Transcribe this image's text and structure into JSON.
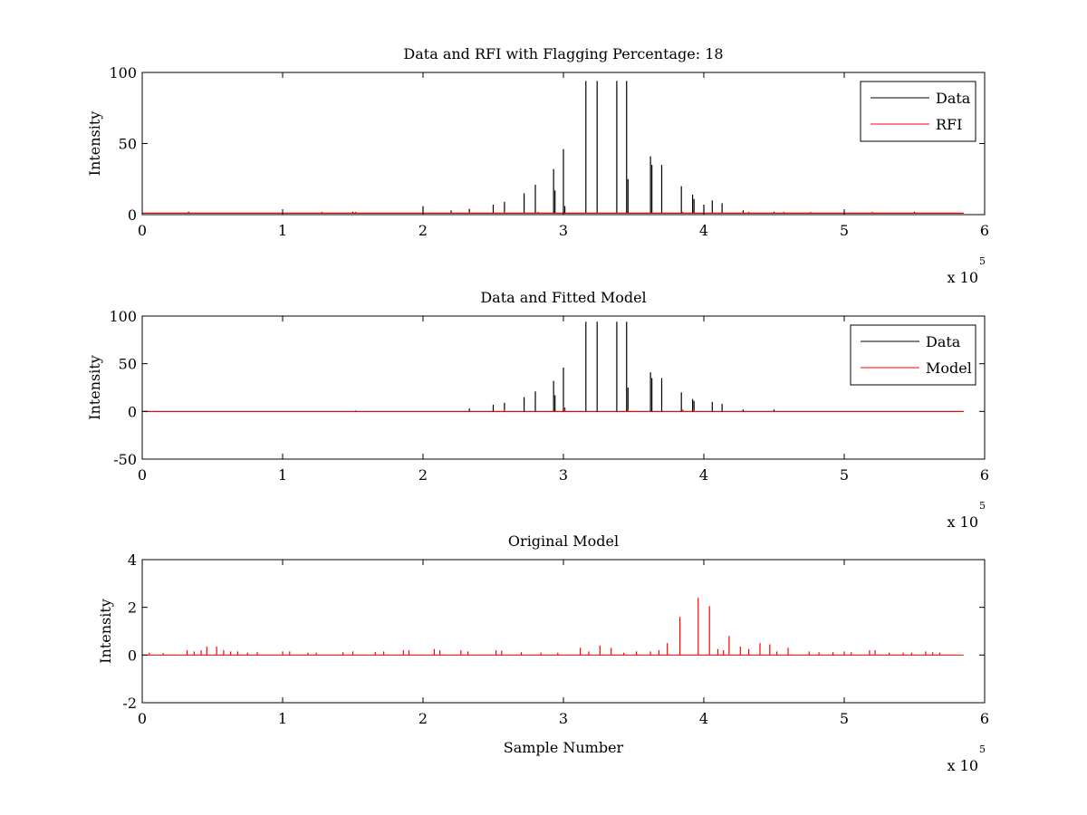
{
  "figure": {
    "background": "#ffffff",
    "axes_color": "#000000",
    "data_color": "#000000",
    "rfi_color": "#ff0000"
  },
  "chart_data": [
    {
      "type": "line",
      "title": "Data and RFI with Flagging Percentage: 18",
      "xlabel": "",
      "ylabel": "Intensity",
      "xlim": [
        0,
        600000
      ],
      "ylim": [
        0,
        100
      ],
      "xticks": [
        "0",
        "1",
        "2",
        "3",
        "4",
        "5",
        "6"
      ],
      "xtick_values": [
        0,
        100000,
        200000,
        300000,
        400000,
        500000,
        600000
      ],
      "yticks": [
        "0",
        "50",
        "100"
      ],
      "ytick_values": [
        0,
        50,
        100
      ],
      "x_multiplier_label": "x 10",
      "x_multiplier_exponent": "5",
      "legend": {
        "position": "top-right",
        "entries": [
          {
            "label": "Data",
            "color": "#000000"
          },
          {
            "label": "RFI",
            "color": "#ff0000"
          }
        ]
      },
      "baseline": 1,
      "x_end": 585000,
      "series": [
        {
          "name": "Data",
          "color": "#000000",
          "spikes": [
            [
              200000,
              6
            ],
            [
              220000,
              3
            ],
            [
              233000,
              4
            ],
            [
              250000,
              7
            ],
            [
              258000,
              9
            ],
            [
              272000,
              15
            ],
            [
              280000,
              21
            ],
            [
              293000,
              32
            ],
            [
              294000,
              17
            ],
            [
              300000,
              46
            ],
            [
              301000,
              6
            ],
            [
              316000,
              94
            ],
            [
              324000,
              94
            ],
            [
              338000,
              94
            ],
            [
              345000,
              94
            ],
            [
              346000,
              25
            ],
            [
              362000,
              41
            ],
            [
              363000,
              35
            ],
            [
              370000,
              35
            ],
            [
              384000,
              20
            ],
            [
              392000,
              14
            ],
            [
              393000,
              11
            ],
            [
              400000,
              7
            ],
            [
              406000,
              10
            ],
            [
              413000,
              8
            ],
            [
              428000,
              3
            ],
            [
              450000,
              2
            ],
            [
              33000,
              2
            ],
            [
              100000,
              1
            ],
            [
              150000,
              2
            ],
            [
              500000,
              2
            ],
            [
              550000,
              2
            ]
          ]
        },
        {
          "name": "RFI",
          "color": "#ff0000",
          "spikes": [
            [
              128000,
              2
            ],
            [
              152000,
              2
            ],
            [
              233000,
              2
            ],
            [
              258000,
              2
            ],
            [
              282000,
              2
            ],
            [
              385000,
              2
            ],
            [
              432000,
              2
            ],
            [
              457000,
              2
            ],
            [
              476000,
              2
            ],
            [
              520000,
              2
            ]
          ]
        }
      ]
    },
    {
      "type": "line",
      "title": "Data and Fitted Model",
      "xlabel": "",
      "ylabel": "Intensity",
      "xlim": [
        0,
        600000
      ],
      "ylim": [
        -50,
        100
      ],
      "xticks": [
        "0",
        "1",
        "2",
        "3",
        "4",
        "5",
        "6"
      ],
      "xtick_values": [
        0,
        100000,
        200000,
        300000,
        400000,
        500000,
        600000
      ],
      "yticks": [
        "-50",
        "0",
        "50",
        "100"
      ],
      "ytick_values": [
        -50,
        0,
        50,
        100
      ],
      "x_multiplier_label": "x 10",
      "x_multiplier_exponent": "5",
      "legend": {
        "position": "top-right",
        "entries": [
          {
            "label": "Data",
            "color": "#000000"
          },
          {
            "label": "Model",
            "color": "#ff0000"
          }
        ]
      },
      "baseline": 0,
      "x_end": 585000,
      "series": [
        {
          "name": "Data",
          "color": "#000000",
          "spikes": [
            [
              233000,
              3
            ],
            [
              250000,
              7
            ],
            [
              258000,
              9
            ],
            [
              272000,
              15
            ],
            [
              280000,
              21
            ],
            [
              293000,
              32
            ],
            [
              294000,
              17
            ],
            [
              300000,
              46
            ],
            [
              301000,
              4
            ],
            [
              316000,
              94
            ],
            [
              324000,
              94
            ],
            [
              338000,
              94
            ],
            [
              345000,
              94
            ],
            [
              346000,
              25
            ],
            [
              362000,
              41
            ],
            [
              363000,
              35
            ],
            [
              370000,
              35
            ],
            [
              384000,
              20
            ],
            [
              392000,
              13
            ],
            [
              393000,
              11
            ],
            [
              406000,
              10
            ],
            [
              413000,
              8
            ],
            [
              428000,
              2
            ],
            [
              450000,
              2
            ]
          ]
        },
        {
          "name": "Model",
          "color": "#ff0000",
          "spikes": [
            [
              152000,
              1
            ],
            [
              258000,
              2
            ],
            [
              301000,
              3
            ],
            [
              346000,
              2
            ],
            [
              385000,
              2
            ],
            [
              393000,
              2
            ]
          ]
        }
      ]
    },
    {
      "type": "line",
      "title": "Original Model",
      "xlabel": "Sample Number",
      "ylabel": "Intensity",
      "xlim": [
        0,
        600000
      ],
      "ylim": [
        -2,
        4
      ],
      "xticks": [
        "0",
        "1",
        "2",
        "3",
        "4",
        "5",
        "6"
      ],
      "xtick_values": [
        0,
        100000,
        200000,
        300000,
        400000,
        500000,
        600000
      ],
      "yticks": [
        "-2",
        "0",
        "2",
        "4"
      ],
      "ytick_values": [
        -2,
        0,
        2,
        4
      ],
      "x_multiplier_label": "x 10",
      "x_multiplier_exponent": "5",
      "baseline": 0,
      "x_end": 585000,
      "series": [
        {
          "name": "Model",
          "color": "#ff0000",
          "spikes": [
            [
              5000,
              0.1
            ],
            [
              15000,
              0.08
            ],
            [
              32000,
              0.2
            ],
            [
              37000,
              0.15
            ],
            [
              42000,
              0.2
            ],
            [
              46000,
              0.35
            ],
            [
              53000,
              0.35
            ],
            [
              58000,
              0.2
            ],
            [
              63000,
              0.15
            ],
            [
              68000,
              0.15
            ],
            [
              75000,
              0.1
            ],
            [
              82000,
              0.12
            ],
            [
              100000,
              0.15
            ],
            [
              105000,
              0.15
            ],
            [
              118000,
              0.1
            ],
            [
              124000,
              0.1
            ],
            [
              143000,
              0.12
            ],
            [
              150000,
              0.15
            ],
            [
              166000,
              0.12
            ],
            [
              172000,
              0.15
            ],
            [
              186000,
              0.2
            ],
            [
              190000,
              0.2
            ],
            [
              208000,
              0.25
            ],
            [
              212000,
              0.2
            ],
            [
              227000,
              0.2
            ],
            [
              232000,
              0.15
            ],
            [
              252000,
              0.2
            ],
            [
              256000,
              0.18
            ],
            [
              270000,
              0.12
            ],
            [
              284000,
              0.1
            ],
            [
              296000,
              0.1
            ],
            [
              312000,
              0.3
            ],
            [
              318000,
              0.15
            ],
            [
              326000,
              0.4
            ],
            [
              334000,
              0.3
            ],
            [
              343000,
              0.1
            ],
            [
              352000,
              0.15
            ],
            [
              362000,
              0.15
            ],
            [
              368000,
              0.2
            ],
            [
              374000,
              0.5
            ],
            [
              383000,
              1.6
            ],
            [
              396000,
              2.4
            ],
            [
              404000,
              2.05
            ],
            [
              410000,
              0.25
            ],
            [
              414000,
              0.2
            ],
            [
              418000,
              0.8
            ],
            [
              426000,
              0.35
            ],
            [
              432000,
              0.25
            ],
            [
              440000,
              0.5
            ],
            [
              447000,
              0.45
            ],
            [
              452000,
              0.15
            ],
            [
              460000,
              0.3
            ],
            [
              475000,
              0.15
            ],
            [
              482000,
              0.12
            ],
            [
              492000,
              0.12
            ],
            [
              500000,
              0.15
            ],
            [
              505000,
              0.12
            ],
            [
              518000,
              0.2
            ],
            [
              522000,
              0.2
            ],
            [
              532000,
              0.1
            ],
            [
              542000,
              0.1
            ],
            [
              548000,
              0.1
            ],
            [
              558000,
              0.15
            ],
            [
              563000,
              0.12
            ],
            [
              568000,
              0.1
            ]
          ]
        }
      ]
    }
  ]
}
